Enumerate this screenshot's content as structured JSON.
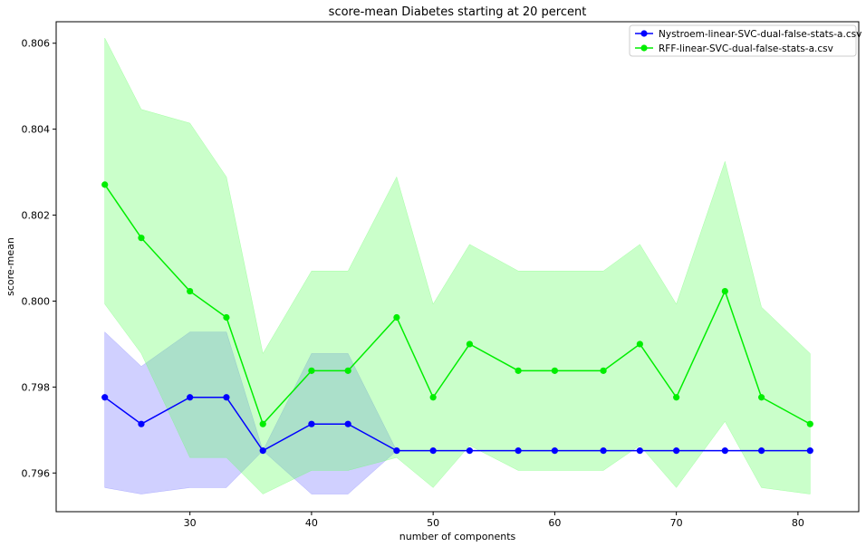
{
  "chart_data": {
    "type": "line",
    "title": "score-mean Diabetes starting at 20 percent",
    "xlabel": "number of components",
    "ylabel": "score-mean",
    "xlim": [
      19,
      85
    ],
    "ylim": [
      0.7951,
      0.8065
    ],
    "xticks": [
      30,
      40,
      50,
      60,
      70,
      80
    ],
    "yticks": [
      0.796,
      0.798,
      0.8,
      0.802,
      0.804,
      0.806
    ],
    "ytick_labels": [
      "0.796",
      "0.798",
      "0.800",
      "0.802",
      "0.804",
      "0.806"
    ],
    "grid": false,
    "legend_position": "top-right",
    "x": [
      23,
      26,
      30,
      33,
      36,
      40,
      43,
      47,
      50,
      53,
      57,
      60,
      64,
      67,
      70,
      74,
      77,
      81
    ],
    "series": [
      {
        "name": "Nystroem-linear-SVC-dual-false-stats-a.csv",
        "color": "#0000ff",
        "band_color": "#7777ff",
        "values": [
          0.79776,
          0.79714,
          0.79776,
          0.79776,
          0.79652,
          0.79714,
          0.79714,
          0.79652,
          0.79652,
          0.79652,
          0.79652,
          0.79652,
          0.79652,
          0.79652,
          0.79652,
          0.79652,
          0.79652,
          0.79652
        ],
        "lower": [
          0.79566,
          0.79551,
          0.79566,
          0.79566,
          0.79652,
          0.79551,
          0.79551,
          0.79652,
          0.79652,
          0.79652,
          0.79652,
          0.79652,
          0.79652,
          0.79652,
          0.79652,
          0.79652,
          0.79652,
          0.79652
        ],
        "upper": [
          0.79928,
          0.79848,
          0.79928,
          0.79928,
          0.79652,
          0.79878,
          0.79878,
          0.79652,
          0.79652,
          0.79652,
          0.79652,
          0.79652,
          0.79652,
          0.79652,
          0.79652,
          0.79652,
          0.79652,
          0.79652
        ]
      },
      {
        "name": "RFF-linear-SVC-dual-false-stats-a.csv",
        "color": "#00ee00",
        "band_color": "#66ff66",
        "values": [
          0.80271,
          0.80147,
          0.80023,
          0.79962,
          0.79714,
          0.79838,
          0.79838,
          0.79962,
          0.79776,
          0.799,
          0.79838,
          0.79838,
          0.79838,
          0.799,
          0.79776,
          0.80023,
          0.79776,
          0.79714
        ],
        "lower": [
          0.79993,
          0.79878,
          0.79636,
          0.79636,
          0.79551,
          0.79606,
          0.79606,
          0.79636,
          0.79566,
          0.79664,
          0.79606,
          0.79606,
          0.79606,
          0.79664,
          0.79566,
          0.7972,
          0.79566,
          0.79551
        ],
        "upper": [
          0.80612,
          0.80446,
          0.80414,
          0.80289,
          0.79878,
          0.8007,
          0.8007,
          0.80289,
          0.79993,
          0.80132,
          0.8007,
          0.8007,
          0.8007,
          0.80132,
          0.79993,
          0.80325,
          0.79986,
          0.79878
        ]
      }
    ]
  }
}
